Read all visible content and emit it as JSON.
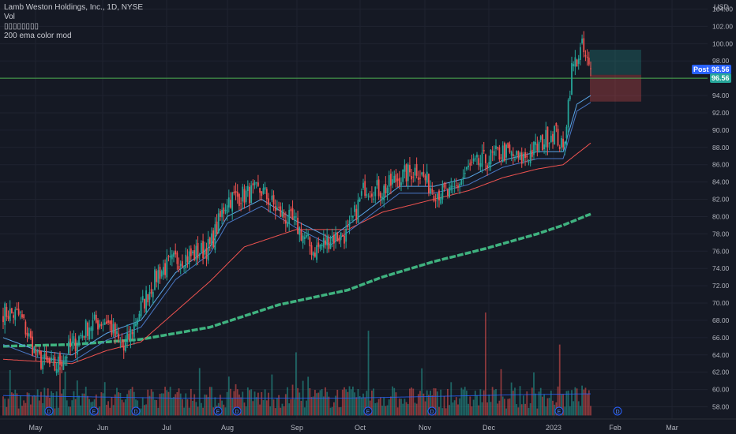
{
  "header": {
    "title": "Lamb Weston Holdings, Inc., 1D, NYSE",
    "vol_label": "Vol",
    "indicator_placeholder": "▯▯▯▯▯▯▯▯",
    "ema_label": "200 ema color mod",
    "currency": "USD"
  },
  "price_badges": {
    "post_label": "Post",
    "post_value": "96.56",
    "last_value": "96.56",
    "post_color": "#2962ff",
    "last_color": "#26a69a"
  },
  "colors": {
    "background": "#151924",
    "up": "#26a69a",
    "down": "#ef5350",
    "ema_fast": "#5aa5e6",
    "ema_mid": "#ef5350",
    "ema200": "#3fb27f",
    "horizontal_line": "#4caf50"
  },
  "chart_data": {
    "type": "candlestick",
    "title": "Lamb Weston Holdings, Inc., 1D, NYSE",
    "ylim": [
      57,
      104
    ],
    "y_ticks": [
      "58.00",
      "60.00",
      "62.00",
      "64.00",
      "66.00",
      "68.00",
      "70.00",
      "72.00",
      "74.00",
      "76.00",
      "78.00",
      "80.00",
      "82.00",
      "84.00",
      "86.00",
      "88.00",
      "90.00",
      "92.00",
      "94.00",
      "96.00",
      "98.00",
      "100.00",
      "102.00",
      "104.00"
    ],
    "x_ticks": [
      "May",
      "Jun",
      "Jul",
      "Aug",
      "Sep",
      "Oct",
      "Nov",
      "Dec",
      "2023",
      "Feb",
      "Mar"
    ],
    "horizontal_line_price": 96.0,
    "position_tool": {
      "entry": 96.4,
      "target": 99.3,
      "stop": 93.3
    },
    "anchors": {
      "close": [
        [
          0,
          69.0
        ],
        [
          10,
          68.5
        ],
        [
          20,
          63.5
        ],
        [
          30,
          62.5
        ],
        [
          40,
          65.0
        ],
        [
          50,
          67.5
        ],
        [
          60,
          68.0
        ],
        [
          70,
          64.5
        ],
        [
          80,
          69.5
        ],
        [
          90,
          73.5
        ],
        [
          100,
          75.0
        ],
        [
          110,
          75.5
        ],
        [
          120,
          76.5
        ],
        [
          130,
          82.0
        ],
        [
          140,
          82.5
        ],
        [
          150,
          83.0
        ],
        [
          160,
          80.5
        ],
        [
          170,
          79.0
        ],
        [
          180,
          76.0
        ],
        [
          190,
          77.5
        ],
        [
          200,
          78.0
        ],
        [
          210,
          83.5
        ],
        [
          220,
          83.0
        ],
        [
          230,
          84.5
        ],
        [
          240,
          85.5
        ],
        [
          250,
          83.0
        ],
        [
          260,
          82.5
        ],
        [
          270,
          85.5
        ],
        [
          280,
          86.5
        ],
        [
          290,
          87.5
        ],
        [
          300,
          86.5
        ],
        [
          310,
          88.0
        ],
        [
          320,
          90.0
        ],
        [
          325,
          87.5
        ],
        [
          330,
          97.0
        ],
        [
          336,
          99.5
        ],
        [
          341,
          96.5
        ]
      ],
      "ema_fast": [
        [
          0,
          66.0
        ],
        [
          20,
          64.5
        ],
        [
          40,
          64.0
        ],
        [
          60,
          66.5
        ],
        [
          80,
          68.0
        ],
        [
          100,
          73.5
        ],
        [
          120,
          76.5
        ],
        [
          130,
          80.0
        ],
        [
          150,
          82.0
        ],
        [
          170,
          79.5
        ],
        [
          190,
          77.5
        ],
        [
          210,
          80.5
        ],
        [
          230,
          83.5
        ],
        [
          250,
          83.5
        ],
        [
          270,
          84.5
        ],
        [
          290,
          86.5
        ],
        [
          310,
          87.5
        ],
        [
          325,
          87.5
        ],
        [
          333,
          93.0
        ],
        [
          341,
          94.0
        ]
      ],
      "ema_mid": [
        [
          0,
          63.5
        ],
        [
          40,
          63.0
        ],
        [
          60,
          64.5
        ],
        [
          80,
          65.5
        ],
        [
          100,
          69.0
        ],
        [
          120,
          72.5
        ],
        [
          140,
          76.5
        ],
        [
          170,
          78.5
        ],
        [
          200,
          78.5
        ],
        [
          220,
          80.5
        ],
        [
          250,
          82.0
        ],
        [
          270,
          83.0
        ],
        [
          290,
          84.5
        ],
        [
          310,
          85.5
        ],
        [
          325,
          86.0
        ],
        [
          341,
          88.5
        ]
      ],
      "ema200": [
        [
          0,
          65.0
        ],
        [
          40,
          65.2
        ],
        [
          80,
          65.8
        ],
        [
          120,
          67.2
        ],
        [
          160,
          69.8
        ],
        [
          200,
          71.5
        ],
        [
          220,
          73.0
        ],
        [
          250,
          74.8
        ],
        [
          280,
          76.3
        ],
        [
          310,
          78.0
        ],
        [
          325,
          79.0
        ],
        [
          341,
          80.3
        ]
      ],
      "volume_avg": [
        [
          0,
          59.3
        ],
        [
          100,
          59.0
        ],
        [
          200,
          59.0
        ],
        [
          300,
          59.4
        ],
        [
          341,
          59.5
        ]
      ]
    },
    "volume_spikes": [
      [
        170,
        64.3
      ],
      [
        212,
        66.8
      ],
      [
        280,
        68.9
      ],
      [
        323,
        65.2
      ]
    ],
    "bars": 342
  }
}
